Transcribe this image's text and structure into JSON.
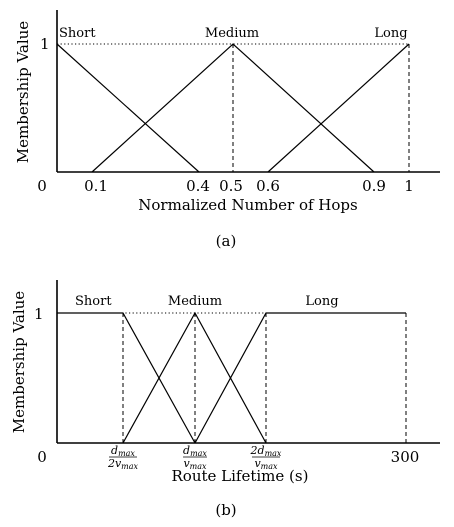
{
  "panel_a": {
    "caption": "(a)",
    "xlabel": "Normalized Number of Hops",
    "ylabel": "Membership Value",
    "y_tick": "1",
    "x_ticks": [
      "0",
      "0.1",
      "0.4",
      "0.5",
      "0.6",
      "0.9",
      "1"
    ],
    "sets": {
      "short": "Short",
      "medium": "Medium",
      "long": "Long"
    }
  },
  "panel_b": {
    "caption": "(b)",
    "xlabel": "Route Lifetime (s)",
    "ylabel": "Membership Value",
    "y_tick": "1",
    "x_ticks": {
      "origin": "0",
      "end": "300"
    },
    "fractions": [
      {
        "num": "d",
        "num_sub": "max",
        "num_coef": "",
        "den": "v",
        "den_sub": "max",
        "den_coef": "2"
      },
      {
        "num": "d",
        "num_sub": "max",
        "num_coef": "",
        "den": "v",
        "den_sub": "max",
        "den_coef": ""
      },
      {
        "num": "d",
        "num_sub": "max",
        "num_coef": "2",
        "den": "v",
        "den_sub": "max",
        "den_coef": ""
      }
    ],
    "sets": {
      "short": "Short",
      "medium": "Medium",
      "long": "Long"
    }
  }
}
